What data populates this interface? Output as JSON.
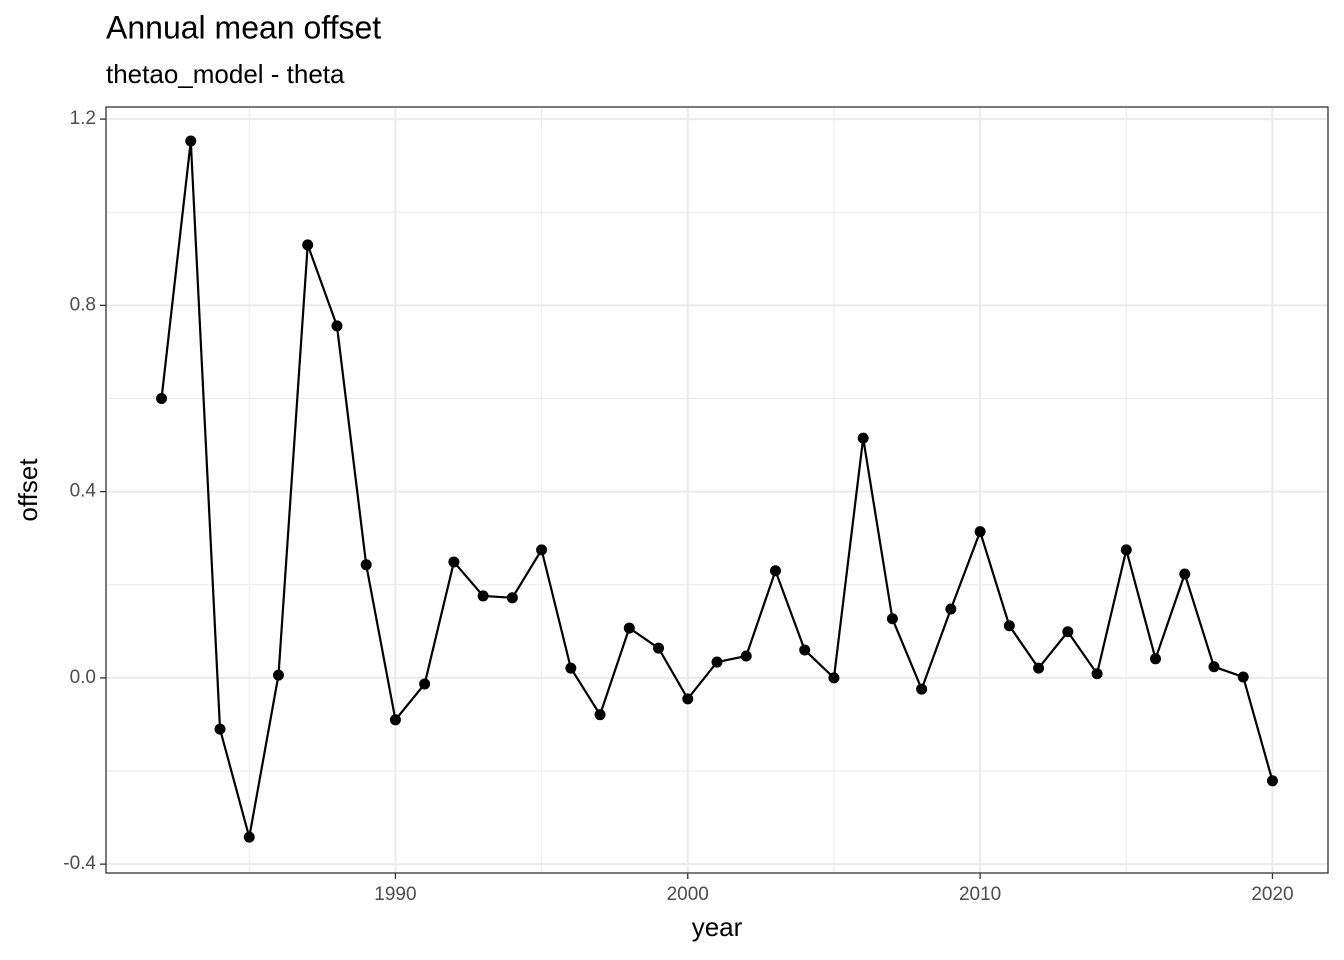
{
  "chart_data": {
    "type": "line",
    "title": "Annual mean offset",
    "subtitle": "thetao_model - theta",
    "x_label": "year",
    "y_label": "offset",
    "x": [
      1982,
      1983,
      1984,
      1985,
      1986,
      1987,
      1988,
      1989,
      1990,
      1991,
      1992,
      1993,
      1994,
      1995,
      1996,
      1997,
      1998,
      1999,
      2000,
      2001,
      2002,
      2003,
      2004,
      2005,
      2006,
      2007,
      2008,
      2009,
      2010,
      2011,
      2012,
      2013,
      2014,
      2015,
      2016,
      2017,
      2018,
      2019,
      2020
    ],
    "series": [
      {
        "color": "#000000",
        "values": [
          0.6,
          1.153,
          -0.11,
          -0.342,
          0.006,
          0.93,
          0.756,
          0.243,
          -0.09,
          -0.013,
          0.249,
          0.176,
          0.172,
          0.275,
          0.021,
          -0.079,
          0.107,
          0.064,
          -0.045,
          0.034,
          0.047,
          0.23,
          0.06,
          0.0,
          0.515,
          0.127,
          -0.024,
          0.148,
          0.314,
          0.112,
          0.021,
          0.099,
          0.009,
          0.275,
          0.041,
          0.223,
          0.024,
          0.002,
          -0.221
        ]
      }
    ],
    "xlim": [
      1980.1,
      2021.9
    ],
    "xticks": [
      1990,
      2000,
      2010,
      2020
    ],
    "ylim": [
      -0.419,
      1.226
    ],
    "yticks": [
      -0.4,
      {
        "value": 0,
        "label": "0.0"
      },
      0.4,
      0.8,
      1.2
    ],
    "grid": true,
    "minor_grid": true
  }
}
